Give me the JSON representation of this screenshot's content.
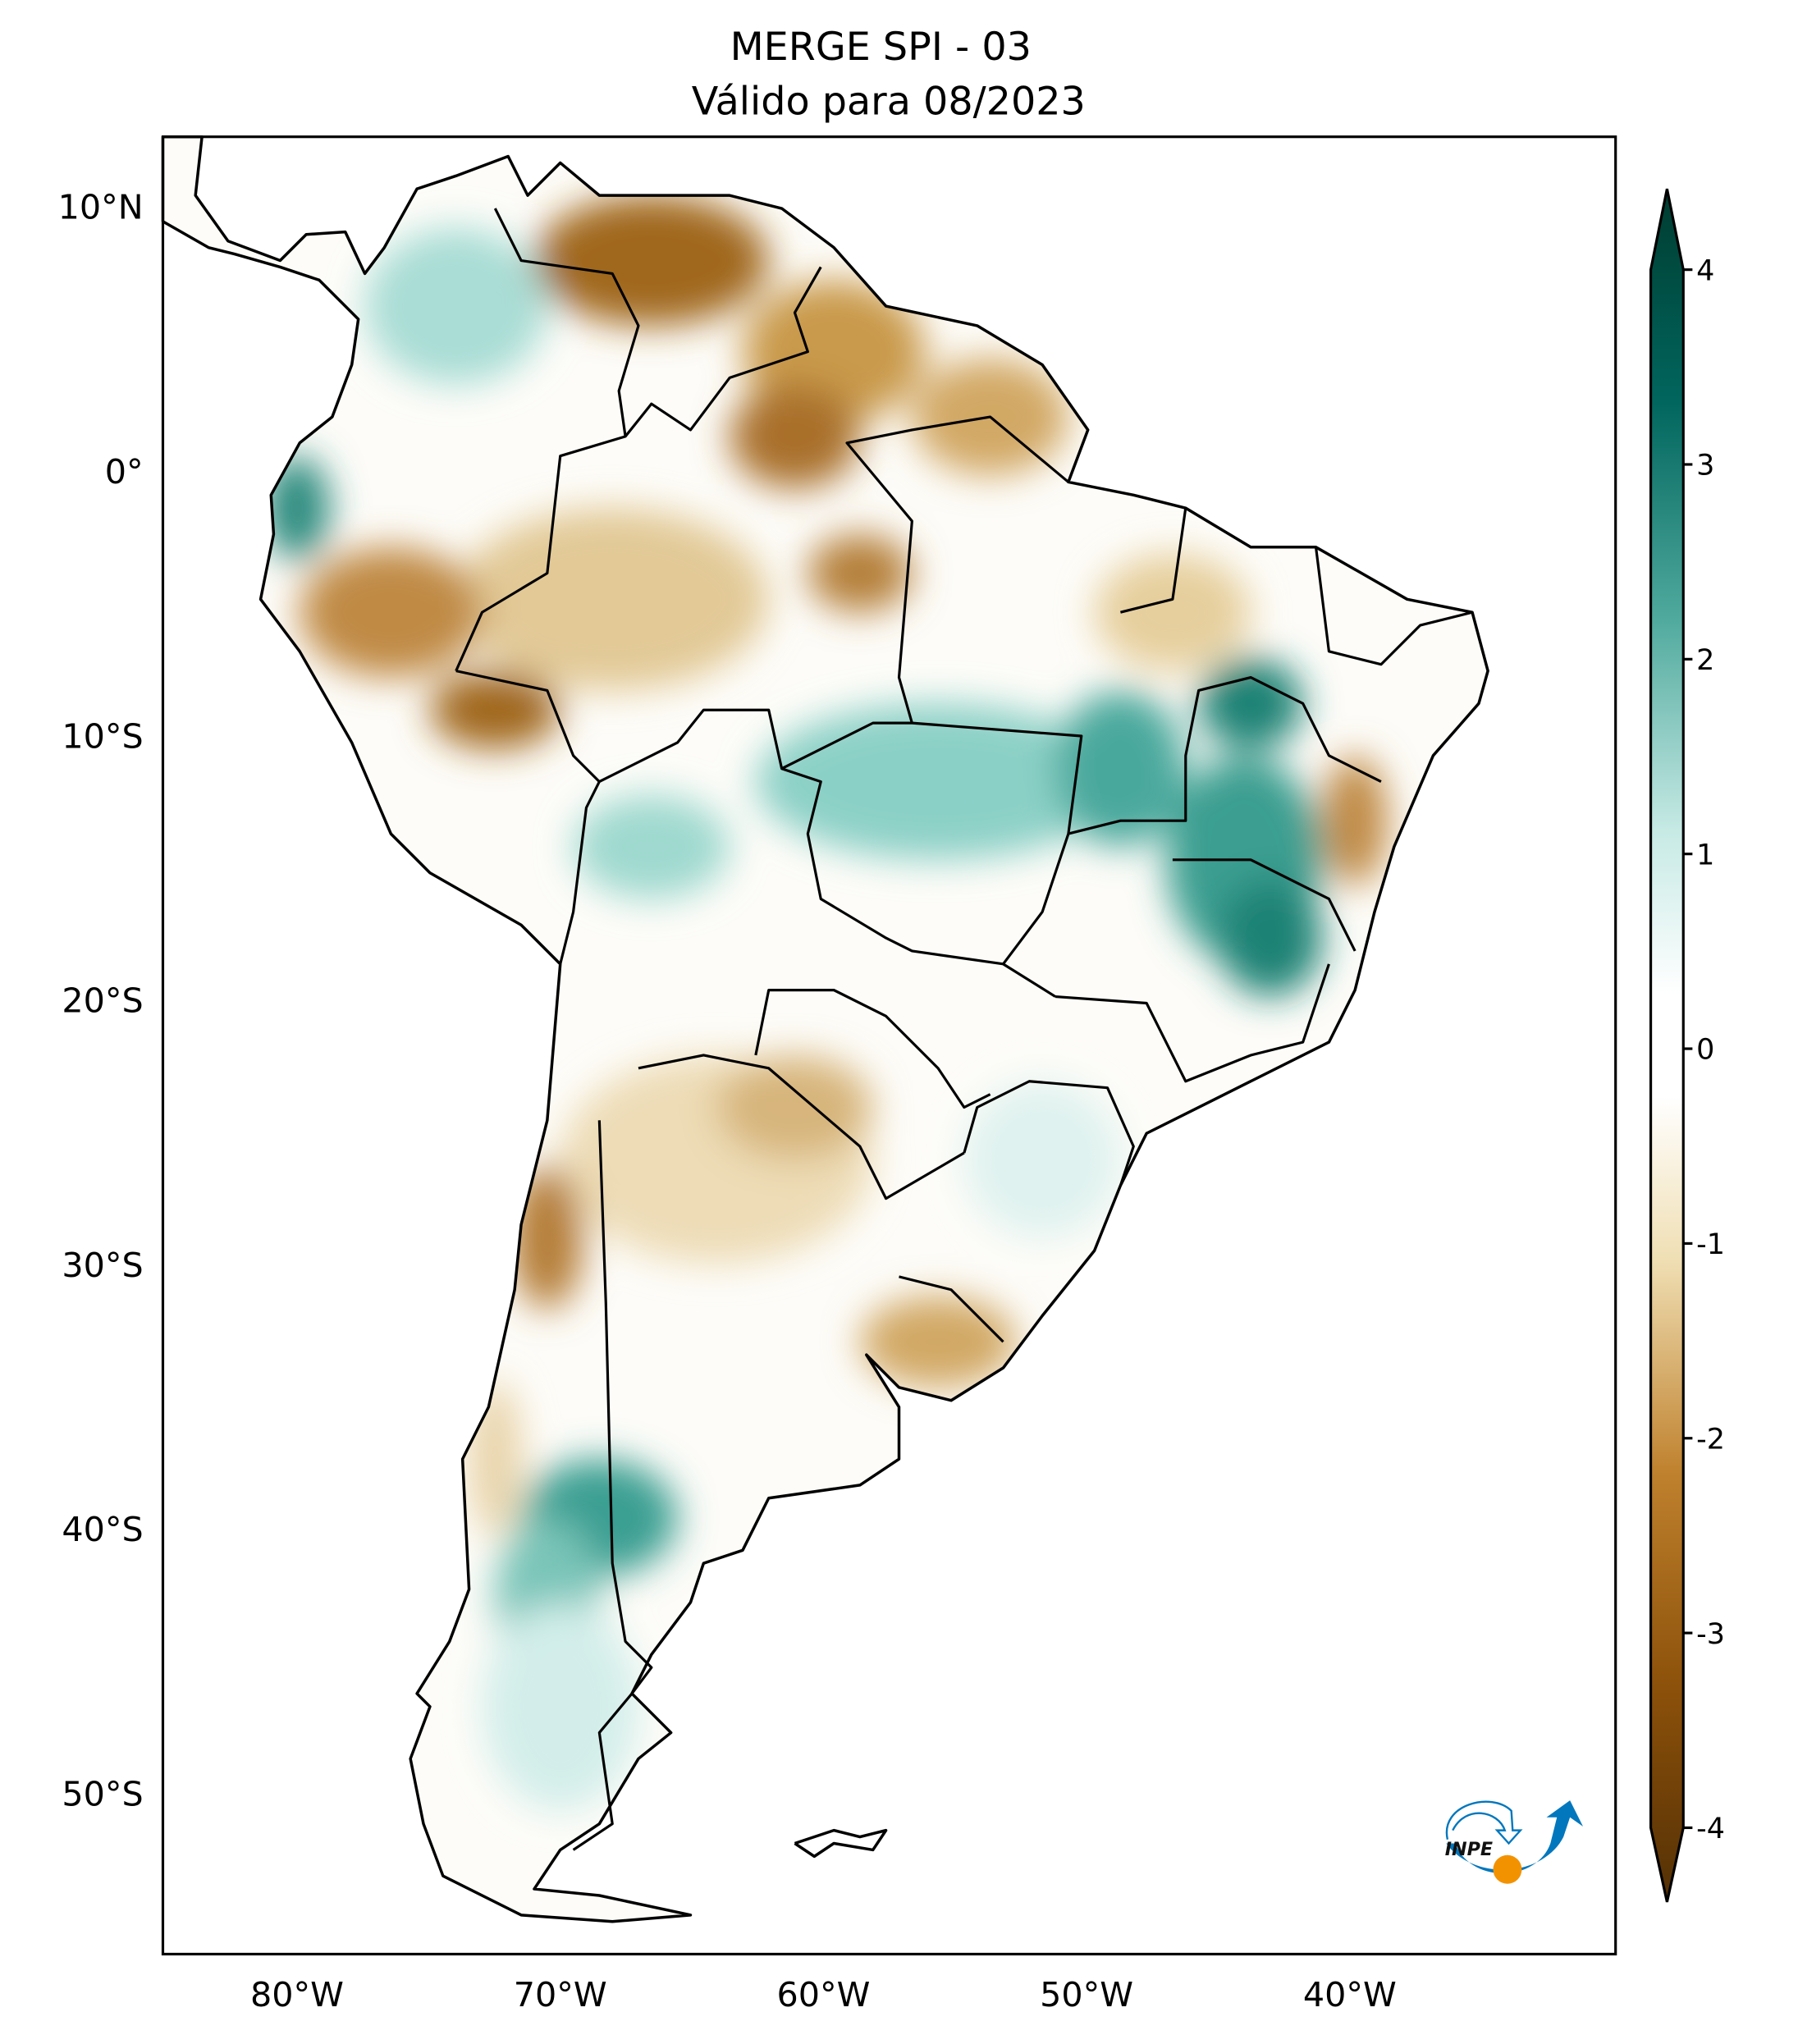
{
  "title": {
    "line1": "MERGE   SPI - 03",
    "line2": "Válido para 08/2023"
  },
  "map": {
    "lat_labels": [
      "10°N",
      "0°",
      "10°S",
      "20°S",
      "30°S",
      "40°S",
      "50°S"
    ],
    "lat_values": [
      10,
      0,
      -10,
      -20,
      -30,
      -40,
      -50
    ],
    "lon_labels": [
      "80°W",
      "70°W",
      "60°W",
      "50°W",
      "40°W"
    ],
    "lon_values": [
      -80,
      -70,
      -60,
      -50,
      -40
    ],
    "extent": {
      "lon": [
        -85,
        -30
      ],
      "lat": [
        -56,
        12.7
      ]
    }
  },
  "colorbar": {
    "ticks": [
      "4",
      "3",
      "2",
      "1",
      "0",
      "-1",
      "-2",
      "-3",
      "-4"
    ],
    "tick_values": [
      4,
      3,
      2,
      1,
      0,
      -1,
      -2,
      -3,
      -4
    ],
    "range": [
      -4,
      4
    ],
    "extend": "both",
    "colors": {
      "min": "#543005",
      "m3": "#8c510a",
      "m2": "#bf812d",
      "m1": "#f0dfb4",
      "zero": "#ffffff",
      "p1": "#c7eae5",
      "p2": "#4fa99d",
      "p3": "#01665e",
      "max": "#003c30"
    }
  },
  "logo": {
    "text": "INPE",
    "blue": "#0277bd",
    "orange": "#f39200"
  }
}
